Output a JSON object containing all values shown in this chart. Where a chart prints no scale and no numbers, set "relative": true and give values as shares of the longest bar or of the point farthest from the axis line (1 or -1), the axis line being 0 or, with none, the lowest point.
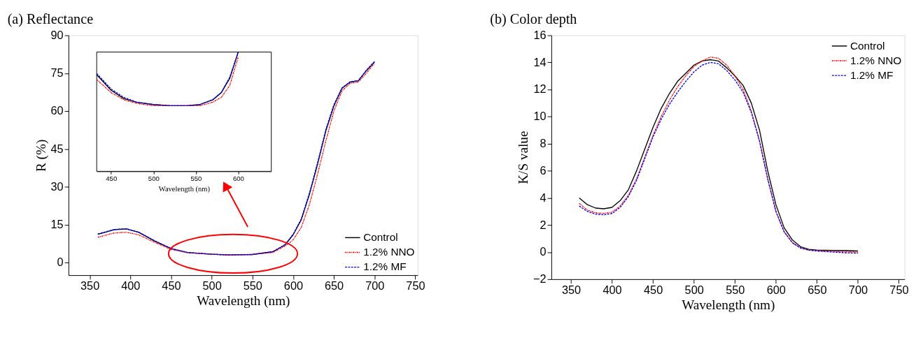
{
  "chart_data": [
    {
      "type": "line",
      "title": "(a) Reflectance",
      "xlabel": "Wavelength (nm)",
      "ylabel": "R (%)",
      "xlim": [
        324,
        753
      ],
      "ylim": [
        -5,
        90
      ],
      "xticks": [
        350,
        400,
        450,
        500,
        550,
        600,
        650,
        700,
        750
      ],
      "yticks": [
        0,
        15,
        30,
        45,
        60,
        75,
        90
      ],
      "grid": false,
      "legend": "bottom right",
      "x": [
        360,
        380,
        395,
        410,
        430,
        450,
        470,
        500,
        520,
        550,
        575,
        590,
        600,
        610,
        620,
        630,
        640,
        650,
        660,
        670,
        680,
        690,
        700
      ],
      "series": [
        {
          "name": "Control",
          "color": "#000000",
          "line_style": "solid",
          "values": [
            11.2,
            13,
            13.3,
            12,
            8.5,
            5.5,
            4,
            3.3,
            3.0,
            3.2,
            4.3,
            7,
            11,
            17,
            27,
            39,
            52,
            62,
            69,
            71.5,
            72,
            76,
            79.5
          ]
        },
        {
          "name": "1.2% NNO",
          "color": "#ff0000",
          "line_style": "dotted",
          "values": [
            10,
            11.7,
            12,
            11,
            8,
            5.2,
            3.9,
            3.3,
            3.1,
            3.2,
            4,
            6.5,
            9,
            14,
            23,
            35,
            48,
            60,
            68,
            71,
            71.5,
            75,
            79
          ]
        },
        {
          "name": "1.2% MF",
          "color": "#0000ff",
          "line_style": "dashed",
          "values": [
            11.3,
            13.1,
            13.4,
            12.1,
            8.6,
            5.6,
            4,
            3.3,
            3.0,
            3.2,
            4.3,
            7.1,
            11.2,
            17.3,
            27.5,
            39.5,
            52.5,
            62.5,
            69.2,
            71.6,
            72,
            76.2,
            79.6
          ]
        }
      ]
    },
    {
      "type": "line",
      "xlabel": "Wavelength (nm)",
      "relative": true,
      "xlim": [
        433,
        639
      ],
      "xticks": [
        450,
        500,
        550,
        600
      ],
      "tick_labels": "x",
      "grid": false,
      "x": [
        433,
        450,
        465,
        480,
        500,
        520,
        540,
        555,
        570,
        580,
        590,
        600
      ],
      "series": [
        {
          "color": "#000000",
          "line_style": "solid",
          "values": [
            0.81,
            0.68,
            0.61,
            0.58,
            0.56,
            0.55,
            0.55,
            0.56,
            0.6,
            0.66,
            0.78,
            1.0
          ]
        },
        {
          "color": "#ff0000",
          "line_style": "dotted",
          "values": [
            0.77,
            0.66,
            0.6,
            0.57,
            0.55,
            0.55,
            0.55,
            0.55,
            0.58,
            0.62,
            0.72,
            0.96
          ]
        },
        {
          "color": "#0000ff",
          "line_style": "dashed",
          "values": [
            0.82,
            0.69,
            0.62,
            0.58,
            0.56,
            0.55,
            0.55,
            0.56,
            0.6,
            0.66,
            0.79,
            1.0
          ]
        }
      ]
    },
    {
      "type": "line",
      "title": "(b) Color depth",
      "xlabel": "Wavelength (nm)",
      "ylabel": "K/S value",
      "xlim": [
        326,
        757
      ],
      "ylim": [
        -2,
        16
      ],
      "xticks": [
        350,
        400,
        450,
        500,
        550,
        600,
        650,
        700,
        750
      ],
      "yticks": [
        -2,
        0,
        2,
        4,
        6,
        8,
        10,
        12,
        14,
        16
      ],
      "grid": false,
      "legend": "top right",
      "x": [
        360,
        370,
        380,
        390,
        400,
        410,
        420,
        430,
        440,
        450,
        460,
        470,
        480,
        490,
        500,
        510,
        520,
        530,
        540,
        550,
        560,
        570,
        580,
        590,
        600,
        610,
        620,
        630,
        640,
        650,
        670,
        685,
        700
      ],
      "series": [
        {
          "name": "Control",
          "color": "#000000",
          "line_style": "solid",
          "values": [
            4,
            3.5,
            3.25,
            3.2,
            3.3,
            3.8,
            4.6,
            6,
            7.6,
            9.2,
            10.6,
            11.7,
            12.6,
            13.2,
            13.8,
            14.1,
            14.2,
            14.1,
            13.6,
            13,
            12.3,
            11,
            9,
            6,
            3.5,
            1.8,
            0.9,
            0.4,
            0.2,
            0.15,
            0.12,
            0.12,
            0.08
          ]
        },
        {
          "name": "1.2% NNO",
          "color": "#ff0000",
          "line_style": "dotted",
          "values": [
            3.6,
            3.1,
            2.9,
            2.85,
            2.95,
            3.4,
            4.2,
            5.4,
            7,
            8.6,
            10,
            11.2,
            12.2,
            13,
            13.7,
            14.1,
            14.4,
            14.3,
            13.8,
            13,
            12,
            10.4,
            8.2,
            5.4,
            3,
            1.5,
            0.7,
            0.3,
            0.15,
            0.1,
            0.05,
            0.03,
            0
          ]
        },
        {
          "name": "1.2% MF",
          "color": "#0000ff",
          "line_style": "dashed",
          "values": [
            3.4,
            3,
            2.8,
            2.75,
            2.85,
            3.3,
            4.1,
            5.3,
            6.9,
            8.5,
            9.8,
            10.9,
            11.8,
            12.6,
            13.3,
            13.8,
            14,
            13.9,
            13.4,
            12.7,
            11.8,
            10.3,
            8.2,
            5.4,
            3,
            1.5,
            0.7,
            0.3,
            0.15,
            0.08,
            0.0,
            -0.05,
            -0.08
          ]
        }
      ]
    }
  ]
}
